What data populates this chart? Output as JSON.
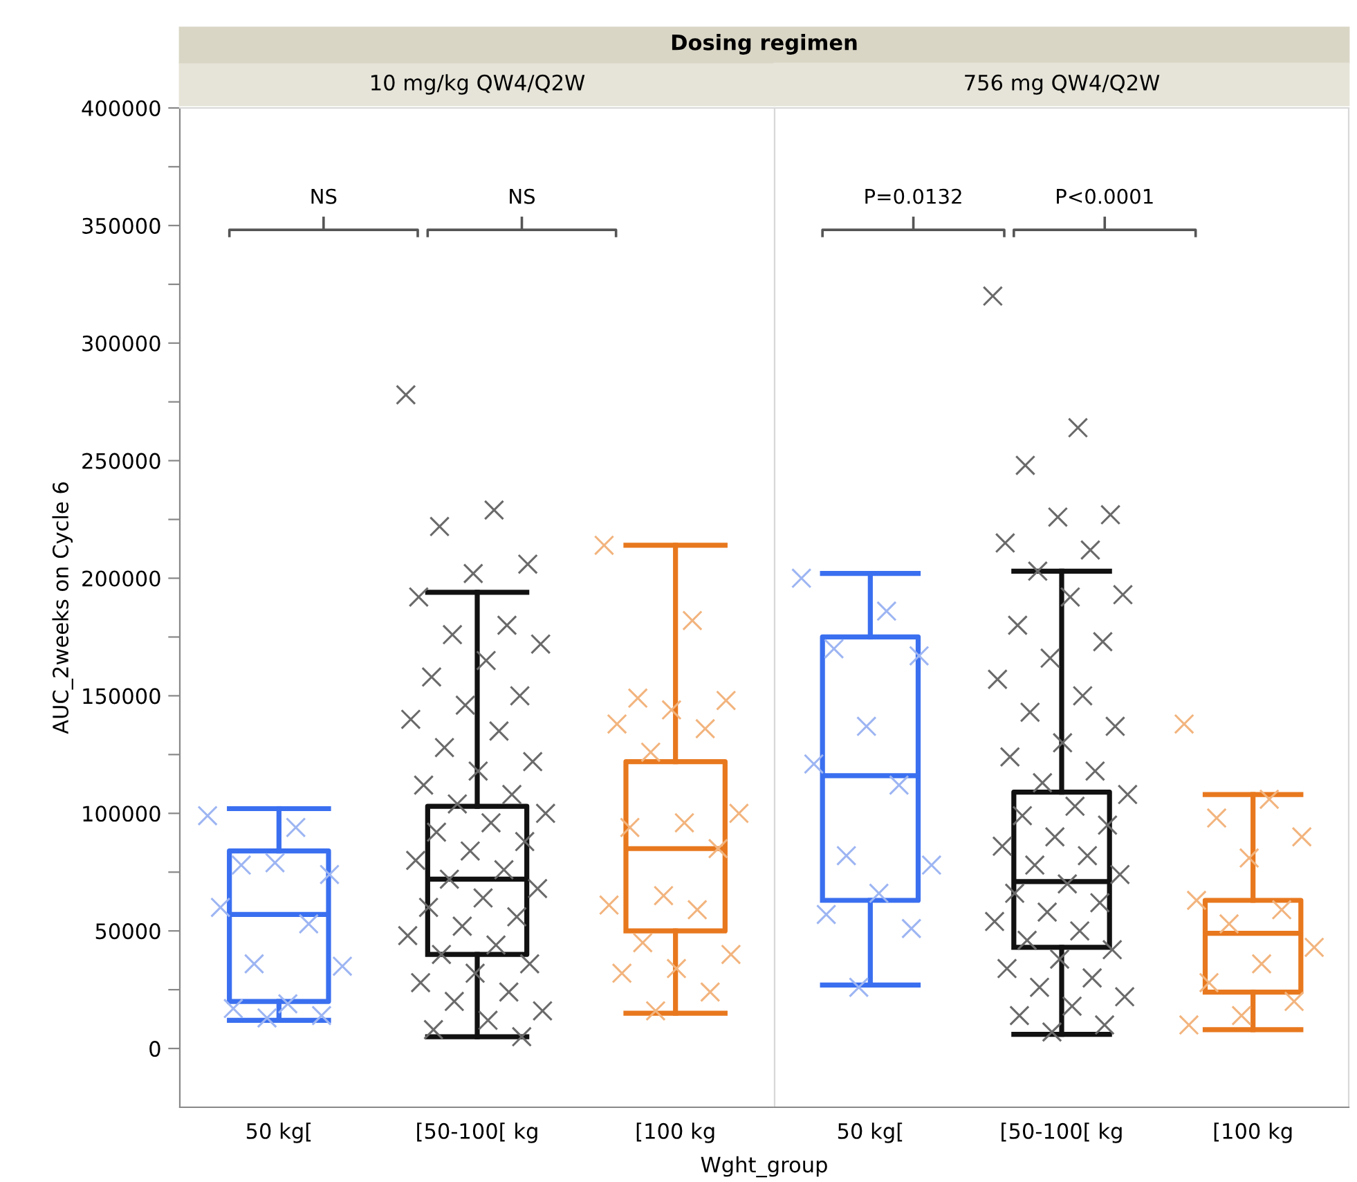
{
  "chart_data": [
    {
      "type": "box",
      "title": "Dosing regimen",
      "subtitle": "10 mg/kg QW4/Q2W",
      "xlabel": "Wght_group",
      "ylabel": "AUC_2weeks on Cycle 6",
      "categories": [
        "50 kg[",
        "[50-100[ kg",
        "[100 kg"
      ],
      "colors": [
        "#3a6ff0",
        "#111111",
        "#e8781e"
      ],
      "boxes": [
        {
          "low": 12000,
          "q1": 20000,
          "median": 57000,
          "q3": 84000,
          "high": 102000
        },
        {
          "low": 5000,
          "q1": 40000,
          "median": 72000,
          "q3": 103000,
          "high": 194000
        },
        {
          "low": 15000,
          "q1": 50000,
          "median": 85000,
          "q3": 122000,
          "high": 214000
        }
      ],
      "series": [
        {
          "type": "scatter",
          "color": "#9db5f2",
          "x": [
            "50 kg[",
            "50 kg[",
            "50 kg[",
            "50 kg[",
            "50 kg[",
            "50 kg[",
            "50 kg[",
            "50 kg[",
            "50 kg[",
            "50 kg[",
            "50 kg[",
            "50 kg[",
            "50 kg["
          ],
          "values": [
            99000,
            94000,
            78000,
            74000,
            79000,
            60000,
            53000,
            36000,
            35000,
            19000,
            17000,
            14000,
            13000
          ]
        },
        {
          "type": "scatter",
          "color": "#6a6a6a",
          "x": [
            "[50-100[ kg",
            "[50-100[ kg",
            "[50-100[ kg",
            "[50-100[ kg",
            "[50-100[ kg",
            "[50-100[ kg",
            "[50-100[ kg",
            "[50-100[ kg",
            "[50-100[ kg",
            "[50-100[ kg",
            "[50-100[ kg",
            "[50-100[ kg",
            "[50-100[ kg",
            "[50-100[ kg",
            "[50-100[ kg",
            "[50-100[ kg",
            "[50-100[ kg",
            "[50-100[ kg",
            "[50-100[ kg",
            "[50-100[ kg",
            "[50-100[ kg",
            "[50-100[ kg",
            "[50-100[ kg",
            "[50-100[ kg",
            "[50-100[ kg",
            "[50-100[ kg",
            "[50-100[ kg",
            "[50-100[ kg",
            "[50-100[ kg",
            "[50-100[ kg",
            "[50-100[ kg",
            "[50-100[ kg",
            "[50-100[ kg",
            "[50-100[ kg",
            "[50-100[ kg",
            "[50-100[ kg",
            "[50-100[ kg",
            "[50-100[ kg",
            "[50-100[ kg",
            "[50-100[ kg",
            "[50-100[ kg",
            "[50-100[ kg",
            "[50-100[ kg",
            "[50-100[ kg",
            "[50-100[ kg",
            "[50-100[ kg"
          ],
          "values": [
            278000,
            229000,
            222000,
            206000,
            202000,
            192000,
            180000,
            176000,
            172000,
            165000,
            158000,
            150000,
            146000,
            140000,
            135000,
            128000,
            122000,
            118000,
            112000,
            108000,
            104000,
            100000,
            96000,
            92000,
            88000,
            84000,
            80000,
            76000,
            72000,
            68000,
            64000,
            60000,
            56000,
            52000,
            48000,
            44000,
            40000,
            36000,
            32000,
            28000,
            24000,
            20000,
            16000,
            12000,
            8000,
            5000
          ]
        },
        {
          "type": "scatter",
          "color": "#f2b47e",
          "x": [
            "[100 kg",
            "[100 kg",
            "[100 kg",
            "[100 kg",
            "[100 kg",
            "[100 kg",
            "[100 kg",
            "[100 kg",
            "[100 kg",
            "[100 kg",
            "[100 kg",
            "[100 kg",
            "[100 kg",
            "[100 kg",
            "[100 kg",
            "[100 kg",
            "[100 kg",
            "[100 kg",
            "[100 kg",
            "[100 kg",
            "[100 kg"
          ],
          "values": [
            214000,
            182000,
            149000,
            148000,
            144000,
            138000,
            136000,
            126000,
            100000,
            96000,
            94000,
            85000,
            65000,
            61000,
            59000,
            45000,
            40000,
            34000,
            32000,
            24000,
            16000
          ]
        }
      ],
      "annotations": [
        "NS",
        "NS"
      ],
      "marker": "cross",
      "ylim": [
        -25000,
        400000
      ],
      "yticks": [
        0,
        {
          "value": 25000,
          "label": null
        },
        50000,
        {
          "value": 75000,
          "label": null
        },
        100000,
        {
          "value": 125000,
          "label": null
        },
        150000,
        {
          "value": 175000,
          "label": null
        },
        200000,
        {
          "value": 225000,
          "label": null
        },
        250000,
        {
          "value": 275000,
          "label": null
        },
        300000,
        {
          "value": 325000,
          "label": null
        },
        350000,
        {
          "value": 375000,
          "label": null
        },
        400000
      ]
    },
    {
      "type": "box",
      "subtitle": "756 mg QW4/Q2W",
      "categories": [
        "50 kg[",
        "[50-100[ kg",
        "[100 kg"
      ],
      "colors": [
        "#3a6ff0",
        "#111111",
        "#e8781e"
      ],
      "boxes": [
        {
          "low": 27000,
          "q1": 63000,
          "median": 116000,
          "q3": 175000,
          "high": 202000
        },
        {
          "low": 6000,
          "q1": 43000,
          "median": 71000,
          "q3": 109000,
          "high": 203000
        },
        {
          "low": 8000,
          "q1": 24000,
          "median": 49000,
          "q3": 63000,
          "high": 108000
        }
      ],
      "series": [
        {
          "type": "scatter",
          "color": "#9db5f2",
          "x": [
            "50 kg[",
            "50 kg[",
            "50 kg[",
            "50 kg[",
            "50 kg[",
            "50 kg[",
            "50 kg[",
            "50 kg[",
            "50 kg[",
            "50 kg[",
            "50 kg[",
            "50 kg[",
            "50 kg["
          ],
          "values": [
            200000,
            186000,
            170000,
            167000,
            137000,
            121000,
            112000,
            82000,
            78000,
            66000,
            57000,
            51000,
            26000
          ]
        },
        {
          "type": "scatter",
          "color": "#6a6a6a",
          "x": [
            "[50-100[ kg",
            "[50-100[ kg",
            "[50-100[ kg",
            "[50-100[ kg",
            "[50-100[ kg",
            "[50-100[ kg",
            "[50-100[ kg",
            "[50-100[ kg",
            "[50-100[ kg",
            "[50-100[ kg",
            "[50-100[ kg",
            "[50-100[ kg",
            "[50-100[ kg",
            "[50-100[ kg",
            "[50-100[ kg",
            "[50-100[ kg",
            "[50-100[ kg",
            "[50-100[ kg",
            "[50-100[ kg",
            "[50-100[ kg",
            "[50-100[ kg",
            "[50-100[ kg",
            "[50-100[ kg",
            "[50-100[ kg",
            "[50-100[ kg",
            "[50-100[ kg",
            "[50-100[ kg",
            "[50-100[ kg",
            "[50-100[ kg",
            "[50-100[ kg",
            "[50-100[ kg",
            "[50-100[ kg",
            "[50-100[ kg",
            "[50-100[ kg",
            "[50-100[ kg",
            "[50-100[ kg",
            "[50-100[ kg",
            "[50-100[ kg",
            "[50-100[ kg",
            "[50-100[ kg",
            "[50-100[ kg",
            "[50-100[ kg",
            "[50-100[ kg",
            "[50-100[ kg",
            "[50-100[ kg",
            "[50-100[ kg",
            "[50-100[ kg"
          ],
          "values": [
            320000,
            264000,
            248000,
            227000,
            226000,
            215000,
            212000,
            203000,
            193000,
            192000,
            180000,
            173000,
            166000,
            157000,
            150000,
            143000,
            137000,
            130000,
            124000,
            118000,
            113000,
            108000,
            103000,
            99000,
            95000,
            90000,
            86000,
            82000,
            78000,
            74000,
            70000,
            66000,
            62000,
            58000,
            54000,
            50000,
            46000,
            42000,
            38000,
            34000,
            30000,
            26000,
            22000,
            18000,
            14000,
            10000,
            7000
          ]
        },
        {
          "type": "scatter",
          "color": "#f2b47e",
          "x": [
            "[100 kg",
            "[100 kg",
            "[100 kg",
            "[100 kg",
            "[100 kg",
            "[100 kg",
            "[100 kg",
            "[100 kg",
            "[100 kg",
            "[100 kg",
            "[100 kg",
            "[100 kg",
            "[100 kg",
            "[100 kg"
          ],
          "values": [
            138000,
            106000,
            98000,
            90000,
            81000,
            63000,
            59000,
            53000,
            43000,
            36000,
            28000,
            20000,
            14000,
            10000
          ]
        }
      ],
      "annotations": [
        "P=0.0132",
        "P<0.0001"
      ],
      "marker": "cross",
      "tick_labels": "x",
      "ylim": [
        -25000,
        400000
      ]
    }
  ]
}
